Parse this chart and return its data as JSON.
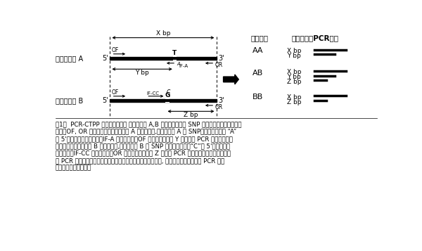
{
  "bg_color": "#ffffff",
  "allele_A_label": "対立遺伝子 A",
  "allele_B_label": "対立遺伝子 B",
  "genotype_header": "遺伝子型",
  "product_header": "生成されるPCR産物",
  "caption_line1": "図1．  PCR-CTPP 法の概念図。　 対立遺伝子 A,B に対して途中に SNP を含むように共通のプラ",
  "caption_line2": "イマーOF, OR を設計する。対立遺伝子 A の認識には,対立遺伝子 A の SNPに相補的な塩基 “A”",
  "caption_line3": "を 5'末端に持つプライマーIF-A とプライマーOF から増幅される Y 塩基対の PCR 産物を検出す",
  "caption_line4": "る。また、対立遺伝子 B の認識には,対立遺伝子 B の SNP に相補的な塩基“C”を 5'末端に持つ",
  "caption_line5": "プライマーIF-CC とプライマーOR から増幅されるの Z 塩基対 PCR 産物を検出する。増幅され",
  "caption_line6": "た PCR 産物の長さと塩基組成によって融解温度が異なるため, 融解温度分析によって PCR 産物",
  "caption_line7": "の違いを検出できる。"
}
